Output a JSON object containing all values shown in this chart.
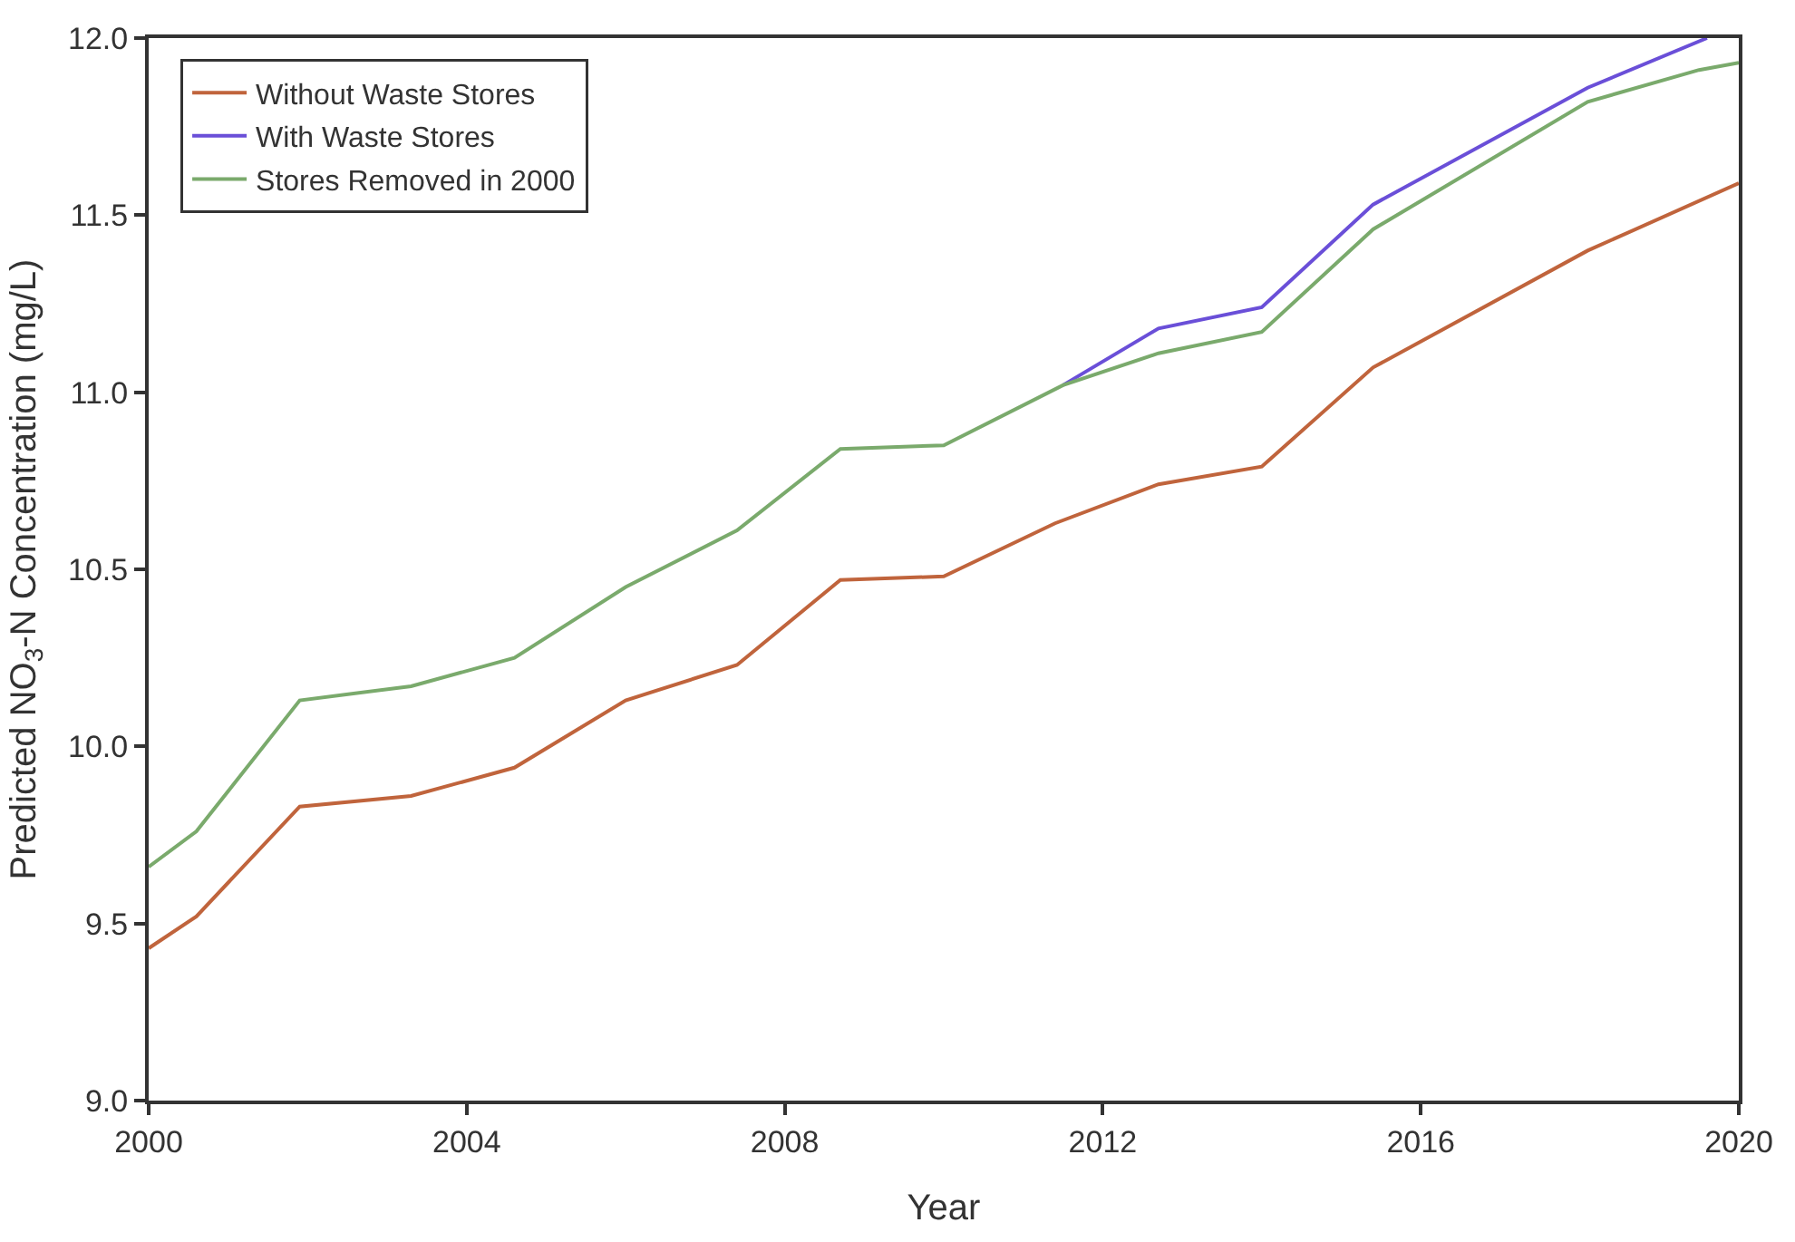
{
  "chart_data": {
    "type": "line",
    "xlabel": "Year",
    "ylabel": "Predicted NO$_{3}$-N Concentration (mg/L)",
    "xlim": [
      2000,
      2020
    ],
    "xticks": [
      2000,
      2004,
      2008,
      2012,
      2016,
      2020
    ],
    "ylim": [
      9.0,
      12.0
    ],
    "yticks": [
      {
        "value": 9.0,
        "label": "9.0"
      },
      9.5,
      {
        "value": 10.0,
        "label": "10.0"
      },
      10.5,
      {
        "value": 11.0,
        "label": "11.0"
      },
      11.5,
      {
        "value": 12.0,
        "label": "12.0"
      }
    ],
    "legend": "top left",
    "marker": "none",
    "line_style": "solid",
    "series": [
      {
        "name": "Without Waste Stores",
        "color": "#c0643c",
        "x": [
          2000,
          2000.6,
          2001.9,
          2003.3,
          2004.6,
          2006.0,
          2007.4,
          2008.7,
          2010.0,
          2011.4,
          2012.7,
          2014.0,
          2015.4,
          2018.1,
          2020
        ],
        "values": [
          9.43,
          9.52,
          9.83,
          9.86,
          9.94,
          10.13,
          10.23,
          10.47,
          10.48,
          10.63,
          10.74,
          10.79,
          11.07,
          11.4,
          11.59
        ]
      },
      {
        "name": "With Waste Stores",
        "color": "#6a4fd8",
        "x": [
          2011.5,
          2012.7,
          2014.0,
          2015.4,
          2018.1,
          2019.6
        ],
        "values": [
          11.02,
          11.18,
          11.24,
          11.53,
          11.86,
          12.0
        ]
      },
      {
        "name": "Stores Removed in 2000",
        "color": "#7aaa6c",
        "x": [
          2000,
          2000.6,
          2001.9,
          2003.3,
          2004.6,
          2006.0,
          2007.4,
          2008.7,
          2010.0,
          2011.5,
          2012.7,
          2014.0,
          2015.4,
          2018.1,
          2019.5,
          2020
        ],
        "values": [
          9.66,
          9.76,
          10.13,
          10.17,
          10.25,
          10.45,
          10.61,
          10.84,
          10.85,
          11.02,
          11.11,
          11.17,
          11.46,
          11.82,
          11.91,
          11.93
        ]
      }
    ]
  }
}
